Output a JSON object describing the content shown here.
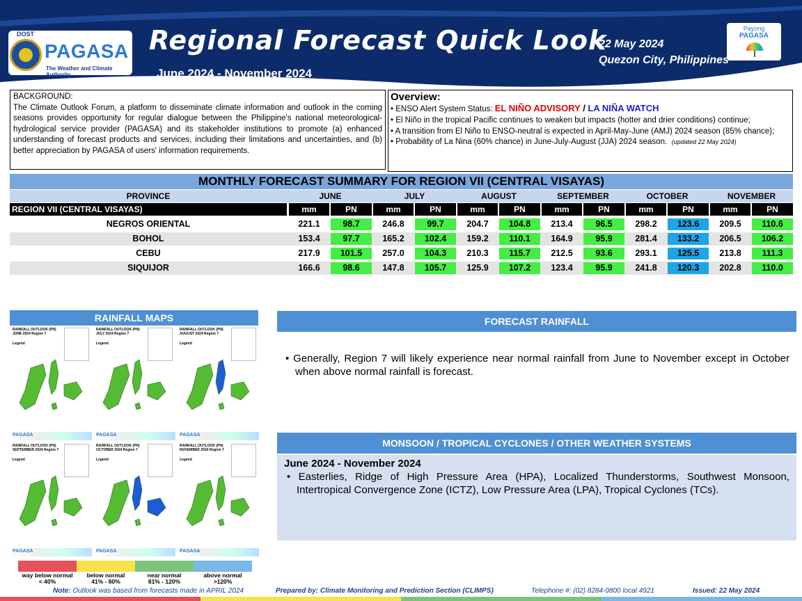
{
  "header": {
    "logo_top": "DOST",
    "logo_name": "PAGASA",
    "logo_sub": "The Weather and Climate Authority",
    "title": "Regional Forecast Quick Look",
    "period": "June 2024 - November 2024",
    "date": "22 May 2024",
    "place": "Quezon City, Philippines",
    "payong_top": "Payong",
    "payong_name": "PAGASA",
    "colors": {
      "banner": "#0c2b6b",
      "accent": "#2a7bd0"
    }
  },
  "background": {
    "heading": "BACKGROUND:",
    "text": "The Climate Outlook Forum, a platform to disseminate climate information and outlook in the coming seasons provides opportunity for regular dialogue between the Philippine's national meteorological-hydrological service provider (PAGASA) and its stakeholder institutions to promote (a) enhanced understanding of forecast products and services, including their limitations and uncertainties, and (b) better appreciation by PAGASA of users' information requirements."
  },
  "overview": {
    "heading": "Overview:",
    "enso_prefix": "ENSO Alert System Status: ",
    "advisory": "EL NIÑO ADVISORY",
    "slash": " / ",
    "watch": "LA NIÑA WATCH",
    "b2": "El Niño in the tropical Pacific continues to weaken but impacts (hotter and drier conditions) continue;",
    "b3": "A transition from El Niño to ENSO-neutral is expected in April-May-June (AMJ) 2024 season (85% chance);",
    "b4": "Probability of La Nina (60% chance) in June-July-August (JJA) 2024 season.",
    "updated": "(updated 22 May 2024)"
  },
  "summary": {
    "title": "MONTHLY FORECAST SUMMARY FOR REGION VII (CENTRAL VISAYAS)",
    "province_label": "PROVINCE",
    "region_label": "REGION VII (CENTRAL VISAYAS)",
    "mm_label": "mm",
    "pn_label": "PN",
    "months": [
      "JUNE",
      "JULY",
      "AUGUST",
      "SEPTEMBER",
      "OCTOBER",
      "NOVEMBER"
    ],
    "rows": [
      {
        "province": "NEGROS ORIENTAL",
        "mm": [
          "221.1",
          "246.8",
          "204.7",
          "213.4",
          "298.2",
          "209.5"
        ],
        "pn": [
          "98.7",
          "99.7",
          "104.8",
          "96.5",
          "123.6",
          "110.6"
        ]
      },
      {
        "province": "BOHOL",
        "mm": [
          "153.4",
          "165.2",
          "159.2",
          "164.9",
          "281.4",
          "206.5"
        ],
        "pn": [
          "97.7",
          "102.4",
          "110.1",
          "95.9",
          "133.2",
          "106.2"
        ]
      },
      {
        "province": "CEBU",
        "mm": [
          "217.9",
          "257.0",
          "210.3",
          "212.5",
          "293.1",
          "213.8"
        ],
        "pn": [
          "101.5",
          "104.3",
          "115.7",
          "93.6",
          "125.5",
          "111.3"
        ]
      },
      {
        "province": "SIQUIJOR",
        "mm": [
          "166.6",
          "147.8",
          "125.9",
          "123.4",
          "241.8",
          "202.8"
        ],
        "pn": [
          "98.6",
          "105.7",
          "107.2",
          "95.9",
          "120.3",
          "110.0"
        ]
      }
    ],
    "colors": {
      "near_normal": "#44ee44",
      "above_normal": "#1ea4e8"
    }
  },
  "maps": {
    "heading": "RAINFALL MAPS",
    "titles": [
      "RAINFALL OUTLOOK (PN) JUNE 2024 Region 7",
      "RAINFALL OUTLOOK (PN) JULY 2024 Region 7",
      "RAINFALL OUTLOOK (PN) AUGUST 2024 Region 7",
      "RAINFALL OUTLOOK (PN) SEPTEMBER 2024 Region 7",
      "RAINFALL OUTLOOK (PN) OCTOBER 2024 Region 7",
      "RAINFALL OUTLOOK (PN) NOVEMBER 2024 Region 7"
    ],
    "legend_word": "Legend",
    "brand": "PAGASA",
    "legend": [
      {
        "label": "way below normal",
        "range": "< 40%",
        "color": "#e8505a"
      },
      {
        "label": "below normal",
        "range": "41% - 80%",
        "color": "#f6e24a"
      },
      {
        "label": "near normal",
        "range": "81% - 120%",
        "color": "#7cc47c"
      },
      {
        "label": "above normal",
        "range": ">120%",
        "color": "#7ab8e8"
      }
    ]
  },
  "forecast": {
    "heading": "FORECAST RAINFALL",
    "text": "Generally, Region 7 will likely experience near normal rainfall from June to November except in October when above normal rainfall is forecast."
  },
  "monsoon": {
    "heading": "MONSOON  /  TROPICAL CYCLONES / OTHER WEATHER SYSTEMS",
    "period": "June 2024 - November 2024",
    "text": "Easterlies, Ridge of High Pressure Area (HPA), Localized Thunderstorms, Southwest Monsoon, Intertropical Convergence Zone (ICTZ), Low Pressure Area (LPA), Tropical Cyclones (TCs)."
  },
  "footer": {
    "note_label": "Note:",
    "note": " Outlook was based from forecasts made in APRIL 2024",
    "prepared": "Prepared by: Climate Monitoring and Prediction Section (CLIMPS)",
    "telephone": "Telephone #: (02) 8284-0800 local 4921",
    "issued": "Issued:  22 May 2024"
  }
}
